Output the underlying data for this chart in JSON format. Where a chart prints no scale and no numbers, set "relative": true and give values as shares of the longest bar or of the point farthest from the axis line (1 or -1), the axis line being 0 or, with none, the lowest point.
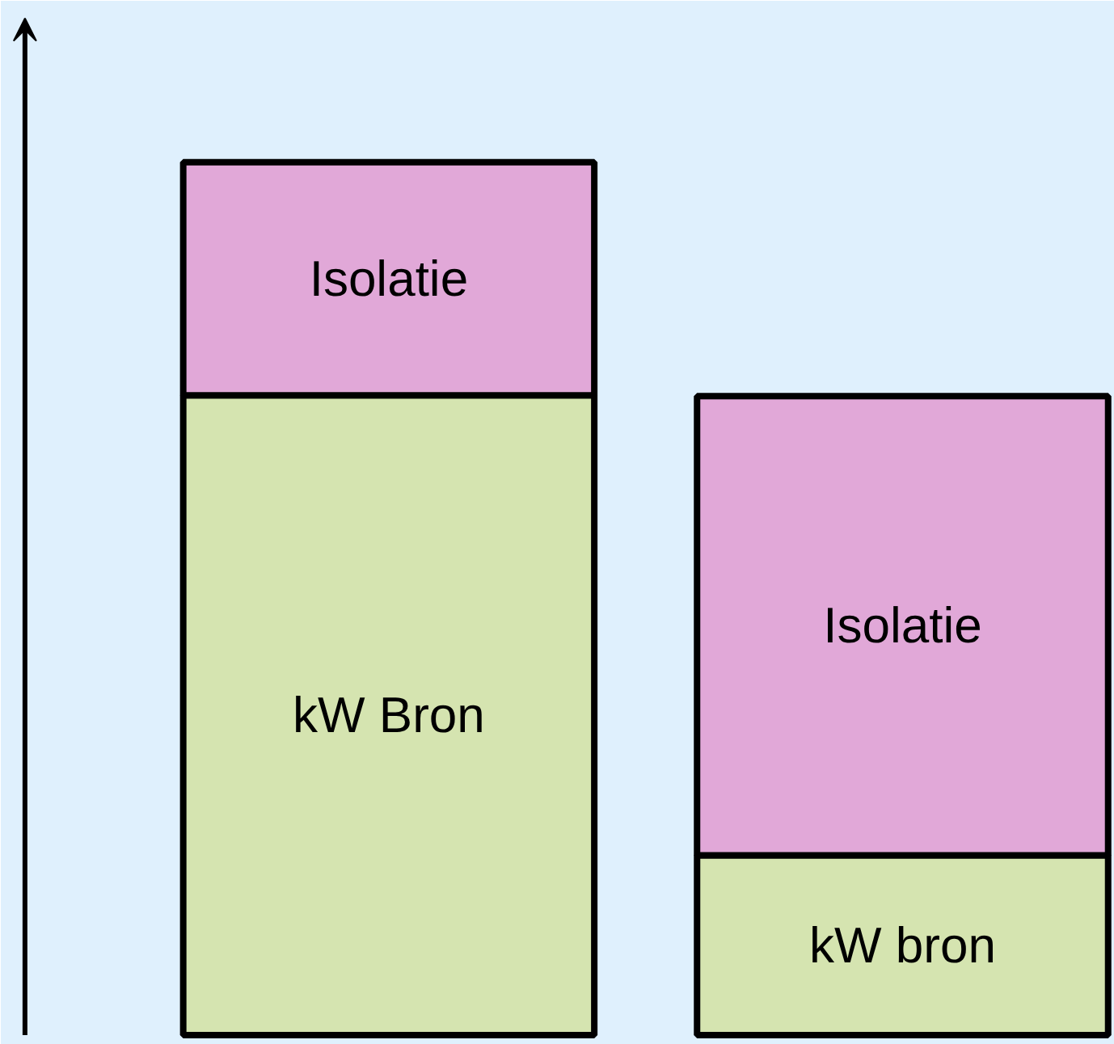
{
  "chart_data": {
    "type": "bar",
    "stacked": true,
    "relative": true,
    "categories": [
      null,
      null
    ],
    "series": [
      {
        "color": "#d5e4b0",
        "values": [
          0.733,
          0.206
        ]
      },
      {
        "color": "#e1a8d8",
        "values": [
          0.267,
          0.526
        ]
      }
    ],
    "annotations": [
      "kW Bron",
      "kW bron",
      "Isolatie",
      "Isolatie"
    ]
  }
}
